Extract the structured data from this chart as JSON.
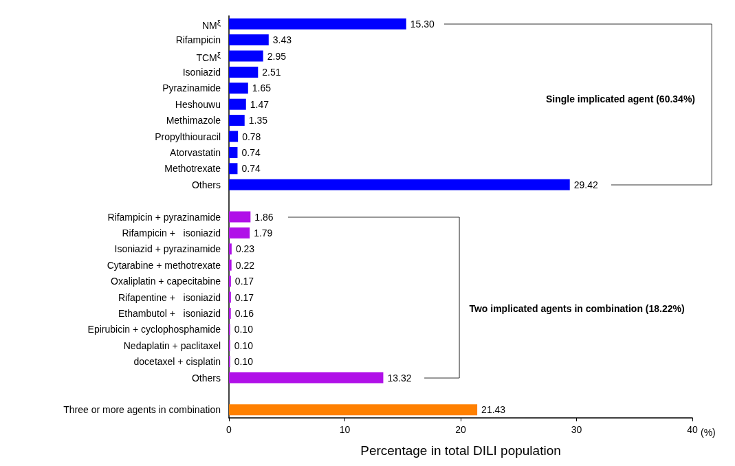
{
  "chart_data": {
    "type": "bar",
    "orientation": "horizontal",
    "categories": [
      "NM$^{ξ}$",
      "Rifampicin",
      "TCM$^{ξ}$",
      "Isoniazid",
      "Pyrazinamide",
      "Heshouwu",
      "Methimazole",
      "Propylthiouracil",
      "Atorvastatin",
      "Methotrexate",
      "Others",
      null,
      "Rifampicin + pyrazinamide",
      "Rifampicin +   isoniazid",
      "Isoniazid + pyrazinamide",
      "Cytarabine + methotrexate",
      "Oxaliplatin + capecitabine",
      "Rifapentine +   isoniazid",
      "Ethambutol +   isoniazid",
      "Epirubicin + cyclophosphamide",
      "Nedaplatin + paclitaxel",
      "docetaxel + cisplatin",
      "Others",
      null,
      "Three or more agents in combination"
    ],
    "values": [
      15.3,
      3.43,
      2.95,
      2.51,
      1.65,
      1.47,
      1.35,
      0.78,
      0.74,
      0.74,
      29.42,
      null,
      1.86,
      1.79,
      0.23,
      0.22,
      0.17,
      0.17,
      0.16,
      0.1,
      0.1,
      0.1,
      13.32,
      null,
      21.43
    ],
    "value_labels": [
      "15.30",
      "3.43",
      "2.95",
      "2.51",
      "1.65",
      "1.47",
      "1.35",
      "0.78",
      "0.74",
      "0.74",
      "29.42",
      null,
      "1.86",
      "1.79",
      "0.23",
      "0.22",
      "0.17",
      "0.17",
      "0.16",
      "0.10",
      "0.10",
      "0.10",
      "13.32",
      null,
      "21.43"
    ],
    "colors": [
      "#0000ff",
      "#0000ff",
      "#0000ff",
      "#0000ff",
      "#0000ff",
      "#0000ff",
      "#0000ff",
      "#0000ff",
      "#0000ff",
      "#0000ff",
      "#0000ff",
      null,
      "#b010e8",
      "#b010e8",
      "#b010e8",
      "#b010e8",
      "#b010e8",
      "#b010e8",
      "#b010e8",
      "#b010e8",
      "#b010e8",
      "#b010e8",
      "#b010e8",
      null,
      "#ff8000"
    ],
    "xlabel": "Percentage in total DILI population",
    "xlim": [
      0,
      40
    ],
    "xticks": [
      0,
      10,
      20,
      30,
      40
    ],
    "annotations": [
      "Single implicated agent (60.34%)",
      "Two implicated agents in combination (18.22%)",
      "(%)"
    ],
    "grid": false
  }
}
